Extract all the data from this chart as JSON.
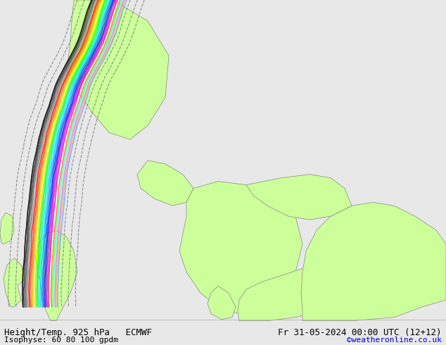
{
  "title_left": "Height/Temp. 925 hPa   ECMWF",
  "title_right": "Fr 31-05-2024 00:00 UTC (12+12)",
  "subtitle_left": "Isophyse: 60 80 100 gpdm",
  "subtitle_right": "©weatheronline.co.uk",
  "subtitle_right_color": "#0000cc",
  "bg_color": "#e8e8e8",
  "land_color_light": "#ccff99",
  "land_color_mid": "#b8f080",
  "sea_color": "#e0e0e0",
  "border_color": "#888888",
  "contour_colors": [
    "#000000",
    "#555555",
    "#888888",
    "#ff0000",
    "#ff6600",
    "#ffaa00",
    "#ffff00",
    "#00ff00",
    "#00ffaa",
    "#00ffff",
    "#00aaff",
    "#0055ff",
    "#0000ff",
    "#aa00ff",
    "#ff00ff",
    "#ff0088",
    "#ffffff",
    "#ff4444",
    "#44ff44",
    "#44ffff"
  ],
  "text_color": "#000000",
  "title_fontsize": 9,
  "subtitle_fontsize": 8,
  "fig_width": 6.34,
  "fig_height": 4.9
}
